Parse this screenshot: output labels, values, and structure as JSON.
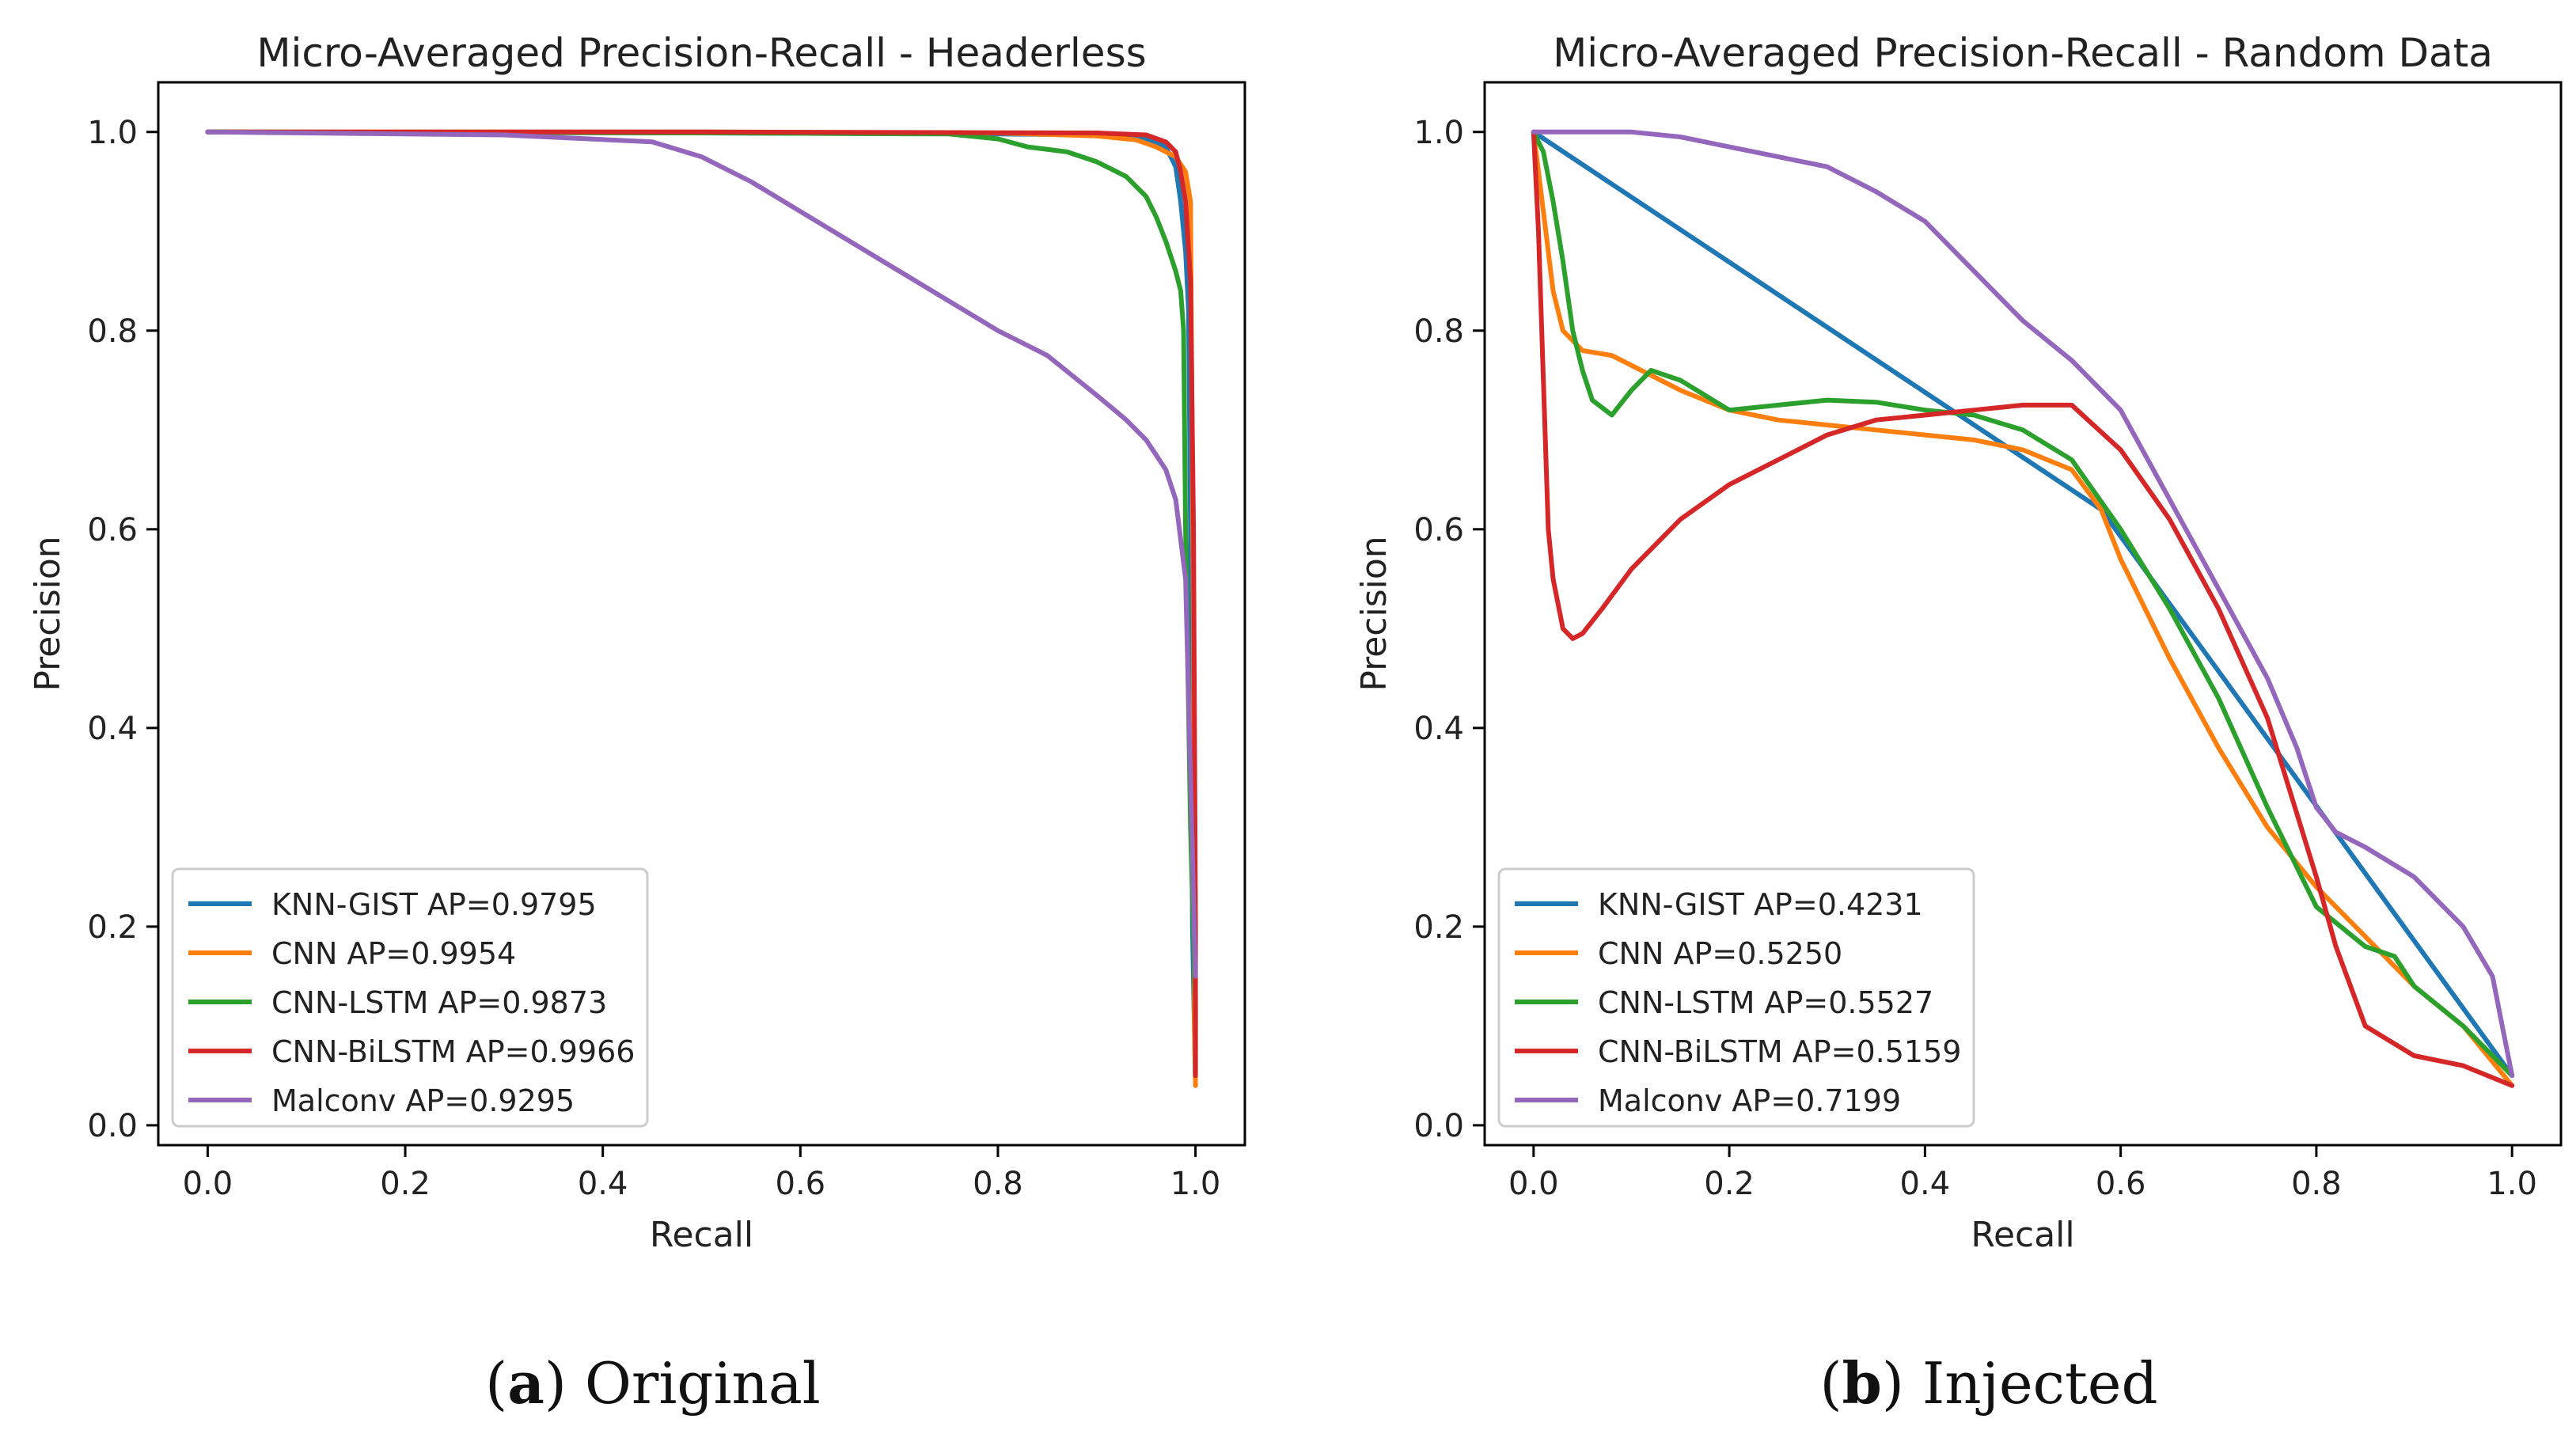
{
  "colors": {
    "knn": "#1f77b4",
    "cnn": "#ff7f0e",
    "lstm": "#2ca02c",
    "bilstm": "#d62728",
    "malconv": "#9467bd"
  },
  "captions": {
    "a": {
      "letter": "a",
      "text": "Original"
    },
    "b": {
      "letter": "b",
      "text": "Injected"
    }
  },
  "chart_data": [
    {
      "type": "line",
      "title": "Micro-Averaged Precision-Recall - Headerless",
      "xlabel": "Recall",
      "ylabel": "Precision",
      "xlim": [
        -0.05,
        1.05
      ],
      "ylim": [
        -0.02,
        1.05
      ],
      "xticks": [
        0.0,
        0.2,
        0.4,
        0.6,
        0.8,
        1.0
      ],
      "yticks": [
        0.0,
        0.2,
        0.4,
        0.6,
        0.8,
        1.0
      ],
      "tick_labels": [
        "0.0",
        "0.2",
        "0.4",
        "0.6",
        "0.8",
        "1.0"
      ],
      "legend_position": "lower-left",
      "series": [
        {
          "name": "KNN-GIST AP=0.9795",
          "color_key": "knn",
          "x": [
            0,
            0.5,
            0.8,
            0.9,
            0.95,
            0.97,
            0.98,
            0.985,
            0.99,
            0.993,
            0.995,
            0.997,
            1.0
          ],
          "y": [
            1.0,
            0.999,
            0.998,
            0.997,
            0.993,
            0.985,
            0.965,
            0.93,
            0.88,
            0.82,
            0.6,
            0.2,
            0.04
          ]
        },
        {
          "name": "CNN AP=0.9954",
          "color_key": "cnn",
          "x": [
            0,
            0.5,
            0.8,
            0.9,
            0.94,
            0.96,
            0.98,
            0.99,
            0.995,
            0.998,
            0.999,
            1.0
          ],
          "y": [
            1.0,
            1.0,
            0.999,
            0.996,
            0.992,
            0.985,
            0.975,
            0.96,
            0.93,
            0.5,
            0.1,
            0.04
          ]
        },
        {
          "name": "CNN-LSTM AP=0.9873",
          "color_key": "lstm",
          "x": [
            0,
            0.5,
            0.75,
            0.8,
            0.83,
            0.87,
            0.9,
            0.93,
            0.95,
            0.96,
            0.97,
            0.98,
            0.985,
            0.988,
            0.99,
            0.995,
            1.0,
            1.0
          ],
          "y": [
            1.0,
            0.999,
            0.998,
            0.993,
            0.985,
            0.98,
            0.97,
            0.955,
            0.935,
            0.915,
            0.89,
            0.86,
            0.84,
            0.8,
            0.6,
            0.3,
            0.12,
            0.05
          ]
        },
        {
          "name": "CNN-BiLSTM AP=0.9966",
          "color_key": "bilstm",
          "x": [
            0,
            0.5,
            0.9,
            0.95,
            0.97,
            0.98,
            0.985,
            0.99,
            0.995,
            0.998,
            1.0,
            1.0
          ],
          "y": [
            1.0,
            1.0,
            0.999,
            0.997,
            0.99,
            0.98,
            0.96,
            0.93,
            0.85,
            0.6,
            0.2,
            0.05
          ]
        },
        {
          "name": "Malconv AP=0.9295",
          "color_key": "malconv",
          "x": [
            0,
            0.3,
            0.45,
            0.5,
            0.55,
            0.6,
            0.65,
            0.7,
            0.75,
            0.8,
            0.85,
            0.9,
            0.93,
            0.95,
            0.96,
            0.97,
            0.98,
            0.99,
            1.0
          ],
          "y": [
            1.0,
            0.997,
            0.99,
            0.975,
            0.95,
            0.92,
            0.89,
            0.86,
            0.83,
            0.8,
            0.775,
            0.735,
            0.71,
            0.69,
            0.675,
            0.66,
            0.63,
            0.55,
            0.15
          ]
        }
      ]
    },
    {
      "type": "line",
      "title": "Micro-Averaged Precision-Recall - Random Data",
      "xlabel": "Recall",
      "ylabel": "Precision",
      "xlim": [
        -0.05,
        1.05
      ],
      "ylim": [
        -0.02,
        1.05
      ],
      "xticks": [
        0.0,
        0.2,
        0.4,
        0.6,
        0.8,
        1.0
      ],
      "yticks": [
        0.0,
        0.2,
        0.4,
        0.6,
        0.8,
        1.0
      ],
      "tick_labels": [
        "0.0",
        "0.2",
        "0.4",
        "0.6",
        "0.8",
        "1.0"
      ],
      "legend_position": "lower-left",
      "series": [
        {
          "name": "KNN-GIST AP=0.4231",
          "color_key": "knn",
          "x": [
            0,
            0.58,
            1.0
          ],
          "y": [
            1.0,
            0.62,
            0.05
          ]
        },
        {
          "name": "CNN AP=0.5250",
          "color_key": "cnn",
          "x": [
            0,
            0.01,
            0.02,
            0.03,
            0.05,
            0.08,
            0.1,
            0.15,
            0.2,
            0.25,
            0.3,
            0.35,
            0.4,
            0.45,
            0.5,
            0.55,
            0.58,
            0.6,
            0.65,
            0.7,
            0.75,
            0.8,
            0.85,
            0.9,
            0.95,
            1.0
          ],
          "y": [
            1.0,
            0.92,
            0.84,
            0.8,
            0.78,
            0.775,
            0.765,
            0.74,
            0.72,
            0.71,
            0.705,
            0.7,
            0.695,
            0.69,
            0.68,
            0.66,
            0.62,
            0.57,
            0.47,
            0.38,
            0.3,
            0.24,
            0.19,
            0.14,
            0.1,
            0.04
          ]
        },
        {
          "name": "CNN-LSTM AP=0.5527",
          "color_key": "lstm",
          "x": [
            0,
            0.01,
            0.02,
            0.03,
            0.04,
            0.05,
            0.06,
            0.08,
            0.1,
            0.12,
            0.15,
            0.2,
            0.25,
            0.3,
            0.35,
            0.4,
            0.45,
            0.5,
            0.55,
            0.6,
            0.65,
            0.7,
            0.75,
            0.8,
            0.85,
            0.88,
            0.9,
            0.95,
            1.0
          ],
          "y": [
            1.0,
            0.98,
            0.93,
            0.87,
            0.8,
            0.76,
            0.73,
            0.715,
            0.74,
            0.76,
            0.75,
            0.72,
            0.725,
            0.73,
            0.728,
            0.72,
            0.715,
            0.7,
            0.67,
            0.6,
            0.52,
            0.43,
            0.32,
            0.22,
            0.18,
            0.17,
            0.14,
            0.1,
            0.05
          ]
        },
        {
          "name": "CNN-BiLSTM AP=0.5159",
          "color_key": "bilstm",
          "x": [
            0,
            0.005,
            0.01,
            0.015,
            0.02,
            0.03,
            0.04,
            0.05,
            0.07,
            0.1,
            0.15,
            0.2,
            0.25,
            0.3,
            0.35,
            0.4,
            0.45,
            0.5,
            0.55,
            0.6,
            0.65,
            0.7,
            0.75,
            0.8,
            0.82,
            0.85,
            0.9,
            0.95,
            1.0
          ],
          "y": [
            1.0,
            0.9,
            0.75,
            0.6,
            0.55,
            0.5,
            0.49,
            0.495,
            0.52,
            0.56,
            0.61,
            0.645,
            0.67,
            0.695,
            0.71,
            0.715,
            0.72,
            0.725,
            0.725,
            0.68,
            0.61,
            0.52,
            0.41,
            0.25,
            0.18,
            0.1,
            0.07,
            0.06,
            0.04
          ]
        },
        {
          "name": "Malconv AP=0.7199",
          "color_key": "malconv",
          "x": [
            0,
            0.05,
            0.1,
            0.15,
            0.2,
            0.25,
            0.3,
            0.35,
            0.4,
            0.45,
            0.5,
            0.55,
            0.6,
            0.65,
            0.7,
            0.75,
            0.78,
            0.8,
            0.82,
            0.85,
            0.9,
            0.95,
            0.98,
            0.99,
            1.0
          ],
          "y": [
            1.0,
            1.0,
            1.0,
            0.995,
            0.985,
            0.975,
            0.965,
            0.94,
            0.91,
            0.86,
            0.81,
            0.77,
            0.72,
            0.63,
            0.54,
            0.45,
            0.38,
            0.32,
            0.295,
            0.28,
            0.25,
            0.2,
            0.15,
            0.1,
            0.05
          ]
        }
      ]
    }
  ]
}
